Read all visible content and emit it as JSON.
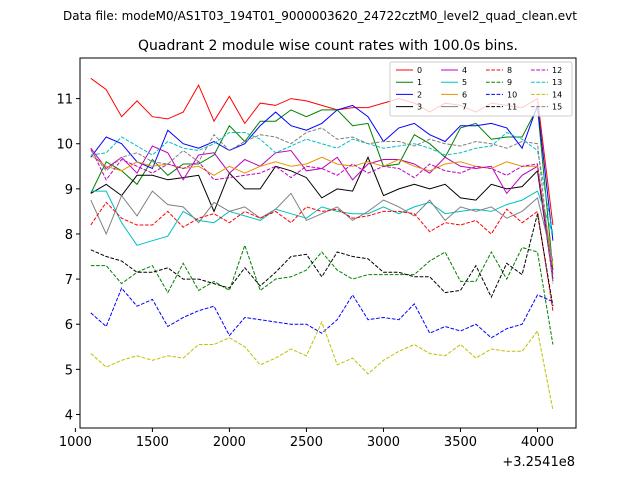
{
  "figure": {
    "supertitle": "Data file: modeM0/AS1T03_194T01_9000003620_24722cztM0_level2_quad_clean.evt"
  },
  "chart_data": {
    "type": "line",
    "title": "Quadrant 2 module wise count rates with 100.0s bins.",
    "xlabel": "",
    "ylabel": "",
    "x_offset_label": "+3.2541e8",
    "xlim": [
      1030,
      4250
    ],
    "ylim": [
      3.7,
      11.9
    ],
    "xticks": [
      1000,
      1500,
      2000,
      2500,
      3000,
      3500,
      4000
    ],
    "yticks": [
      4,
      5,
      6,
      7,
      8,
      9,
      10,
      11
    ],
    "grid": false,
    "legend": {
      "placement": "top-right",
      "columns": 4
    },
    "x": [
      1100,
      1200,
      1300,
      1400,
      1500,
      1600,
      1700,
      1800,
      1900,
      2000,
      2100,
      2200,
      2300,
      2400,
      2500,
      2600,
      2700,
      2800,
      2900,
      3000,
      3100,
      3200,
      3300,
      3400,
      3500,
      3600,
      3700,
      3800,
      3900,
      4000,
      4100
    ],
    "series": [
      {
        "name": "0",
        "color": "#ff0000",
        "dash": "solid",
        "values": [
          11.45,
          11.2,
          10.6,
          10.95,
          10.6,
          10.55,
          10.7,
          11.3,
          10.5,
          11.05,
          10.45,
          10.9,
          10.85,
          11.0,
          10.95,
          10.85,
          10.75,
          10.8,
          10.8,
          10.9,
          11.0,
          10.9,
          10.7,
          10.9,
          10.85,
          10.7,
          10.9,
          10.85,
          10.8,
          11.0,
          8.2
        ]
      },
      {
        "name": "1",
        "color": "#008000",
        "dash": "solid",
        "values": [
          8.9,
          9.6,
          9.4,
          9.1,
          9.65,
          9.3,
          9.55,
          9.55,
          9.75,
          10.4,
          10.05,
          10.5,
          10.5,
          10.75,
          10.6,
          10.75,
          10.75,
          10.4,
          10.45,
          9.5,
          9.55,
          10.2,
          10.0,
          9.7,
          10.35,
          10.45,
          10.1,
          10.15,
          10.15,
          10.8,
          7.2
        ]
      },
      {
        "name": "2",
        "color": "#0000ff",
        "dash": "solid",
        "values": [
          9.7,
          10.15,
          10.0,
          9.6,
          9.45,
          10.3,
          10.0,
          9.9,
          10.05,
          9.85,
          10.0,
          10.4,
          10.7,
          10.4,
          10.3,
          10.45,
          10.75,
          10.85,
          10.6,
          10.05,
          10.35,
          10.45,
          10.2,
          10.05,
          10.4,
          10.4,
          10.45,
          10.35,
          9.9,
          10.85,
          7.85
        ]
      },
      {
        "name": "3",
        "color": "#000000",
        "dash": "solid",
        "values": [
          8.9,
          9.1,
          8.85,
          9.3,
          9.3,
          9.2,
          9.25,
          9.3,
          8.5,
          9.35,
          9.0,
          9.0,
          9.5,
          9.4,
          9.25,
          8.8,
          9.0,
          8.95,
          9.7,
          8.85,
          9.0,
          9.1,
          9.0,
          9.1,
          8.8,
          8.75,
          9.1,
          9.0,
          9.05,
          9.4,
          7.0
        ]
      },
      {
        "name": "4",
        "color": "#c000c0",
        "dash": "solid",
        "values": [
          9.9,
          9.45,
          9.7,
          9.35,
          9.95,
          9.8,
          9.2,
          9.75,
          9.8,
          9.35,
          9.65,
          9.5,
          9.8,
          9.85,
          9.4,
          9.45,
          9.7,
          9.2,
          9.55,
          9.65,
          9.65,
          9.55,
          9.35,
          9.7,
          9.5,
          9.45,
          9.5,
          8.9,
          9.3,
          9.5,
          7.1
        ]
      },
      {
        "name": "5",
        "color": "#00c0c0",
        "dash": "solid",
        "values": [
          8.95,
          8.95,
          8.25,
          7.75,
          7.85,
          7.95,
          8.5,
          8.3,
          8.25,
          8.5,
          8.4,
          8.3,
          8.55,
          8.45,
          8.35,
          8.6,
          8.5,
          8.45,
          8.45,
          8.6,
          8.45,
          8.6,
          8.7,
          8.45,
          8.5,
          8.55,
          8.5,
          8.65,
          8.75,
          8.95,
          8.0
        ]
      },
      {
        "name": "6",
        "color": "#e69500",
        "dash": "solid",
        "values": [
          9.75,
          9.5,
          9.4,
          9.6,
          9.5,
          9.55,
          9.45,
          9.5,
          9.3,
          9.5,
          9.35,
          9.5,
          9.6,
          9.5,
          9.55,
          9.7,
          9.55,
          9.5,
          9.6,
          9.5,
          9.65,
          9.5,
          9.4,
          9.55,
          9.6,
          9.5,
          9.45,
          9.6,
          9.5,
          9.5,
          7.3
        ]
      },
      {
        "name": "7",
        "color": "#808080",
        "dash": "solid",
        "values": [
          8.75,
          8.0,
          8.85,
          8.4,
          8.95,
          8.65,
          8.6,
          8.25,
          8.7,
          8.5,
          8.6,
          8.35,
          8.55,
          8.9,
          8.3,
          8.45,
          8.6,
          8.3,
          8.5,
          8.75,
          8.6,
          8.4,
          8.75,
          8.3,
          8.6,
          8.5,
          8.6,
          8.35,
          8.5,
          8.8,
          7.4
        ]
      },
      {
        "name": "8",
        "color": "#ff0000",
        "dash": "dashed",
        "values": [
          8.2,
          8.7,
          8.35,
          8.2,
          8.2,
          8.5,
          8.15,
          8.35,
          8.45,
          8.25,
          8.5,
          8.35,
          8.5,
          8.25,
          8.6,
          8.5,
          8.55,
          8.35,
          8.4,
          8.5,
          8.5,
          8.45,
          8.05,
          8.25,
          8.2,
          8.3,
          8.0,
          8.55,
          8.25,
          8.5,
          6.3
        ]
      },
      {
        "name": "9",
        "color": "#008000",
        "dash": "dashed",
        "values": [
          7.3,
          7.3,
          6.9,
          7.15,
          7.3,
          6.7,
          7.35,
          6.75,
          6.95,
          6.75,
          7.75,
          6.75,
          7.0,
          7.05,
          7.2,
          7.6,
          7.2,
          7.0,
          7.1,
          7.1,
          7.1,
          7.1,
          7.4,
          7.6,
          6.95,
          6.95,
          7.6,
          7.0,
          7.7,
          7.6,
          5.55
        ]
      },
      {
        "name": "10",
        "color": "#0000ff",
        "dash": "dashed",
        "values": [
          6.25,
          5.95,
          6.8,
          6.4,
          6.55,
          5.95,
          6.15,
          6.3,
          6.4,
          5.75,
          6.15,
          6.1,
          6.05,
          6.0,
          6.0,
          5.8,
          6.1,
          6.65,
          6.1,
          6.15,
          6.1,
          6.45,
          5.8,
          5.95,
          5.85,
          6.0,
          5.7,
          5.9,
          6.0,
          6.65,
          6.5
        ]
      },
      {
        "name": "11",
        "color": "#000000",
        "dash": "dashed",
        "values": [
          7.65,
          7.5,
          7.4,
          7.15,
          7.15,
          7.25,
          7.0,
          7.0,
          6.9,
          6.8,
          7.25,
          6.85,
          7.15,
          7.5,
          7.55,
          7.05,
          7.6,
          7.5,
          7.45,
          7.15,
          7.15,
          7.05,
          7.05,
          6.7,
          6.75,
          7.3,
          6.6,
          7.35,
          7.1,
          8.45,
          6.4
        ]
      },
      {
        "name": "12",
        "color": "#c000c0",
        "dash": "dashed",
        "values": [
          9.9,
          9.2,
          9.65,
          9.5,
          9.35,
          9.55,
          9.45,
          9.6,
          9.2,
          9.25,
          9.3,
          9.35,
          9.5,
          9.25,
          9.5,
          9.45,
          9.3,
          9.55,
          9.35,
          9.5,
          9.45,
          9.25,
          9.55,
          9.4,
          9.35,
          9.5,
          9.45,
          9.3,
          9.5,
          9.55,
          6.95
        ]
      },
      {
        "name": "13",
        "color": "#00c0c0",
        "dash": "dashed",
        "values": [
          9.75,
          9.8,
          10.15,
          9.95,
          9.75,
          10.05,
          9.9,
          9.85,
          10.0,
          10.25,
          10.25,
          10.1,
          9.8,
          9.95,
          10.1,
          10.0,
          9.9,
          10.1,
          10.0,
          9.9,
          9.95,
          10.0,
          9.9,
          9.75,
          9.8,
          9.9,
          9.95,
          10.25,
          10.1,
          9.85,
          8.0
        ]
      },
      {
        "name": "14",
        "color": "#c0c000",
        "dash": "dashed",
        "values": [
          5.35,
          5.05,
          5.2,
          5.3,
          5.2,
          5.3,
          5.25,
          5.55,
          5.55,
          5.7,
          5.5,
          5.1,
          5.25,
          5.45,
          5.3,
          6.05,
          5.1,
          5.25,
          4.9,
          5.2,
          5.4,
          5.55,
          5.35,
          5.3,
          5.55,
          5.25,
          5.45,
          5.4,
          5.4,
          5.85,
          4.1
        ]
      },
      {
        "name": "15",
        "color": "#808080",
        "dash": "dashed",
        "values": [
          9.85,
          9.4,
          9.7,
          9.8,
          9.6,
          9.55,
          9.85,
          9.6,
          10.2,
          9.85,
          10.05,
          10.2,
          10.15,
          10.0,
          10.25,
          10.35,
          10.1,
          10.15,
          10.0,
          10.05,
          10.05,
          9.95,
          10.1,
          10.0,
          9.95,
          10.05,
          10.0,
          9.9,
          10.05,
          10.0,
          6.9
        ]
      }
    ]
  }
}
